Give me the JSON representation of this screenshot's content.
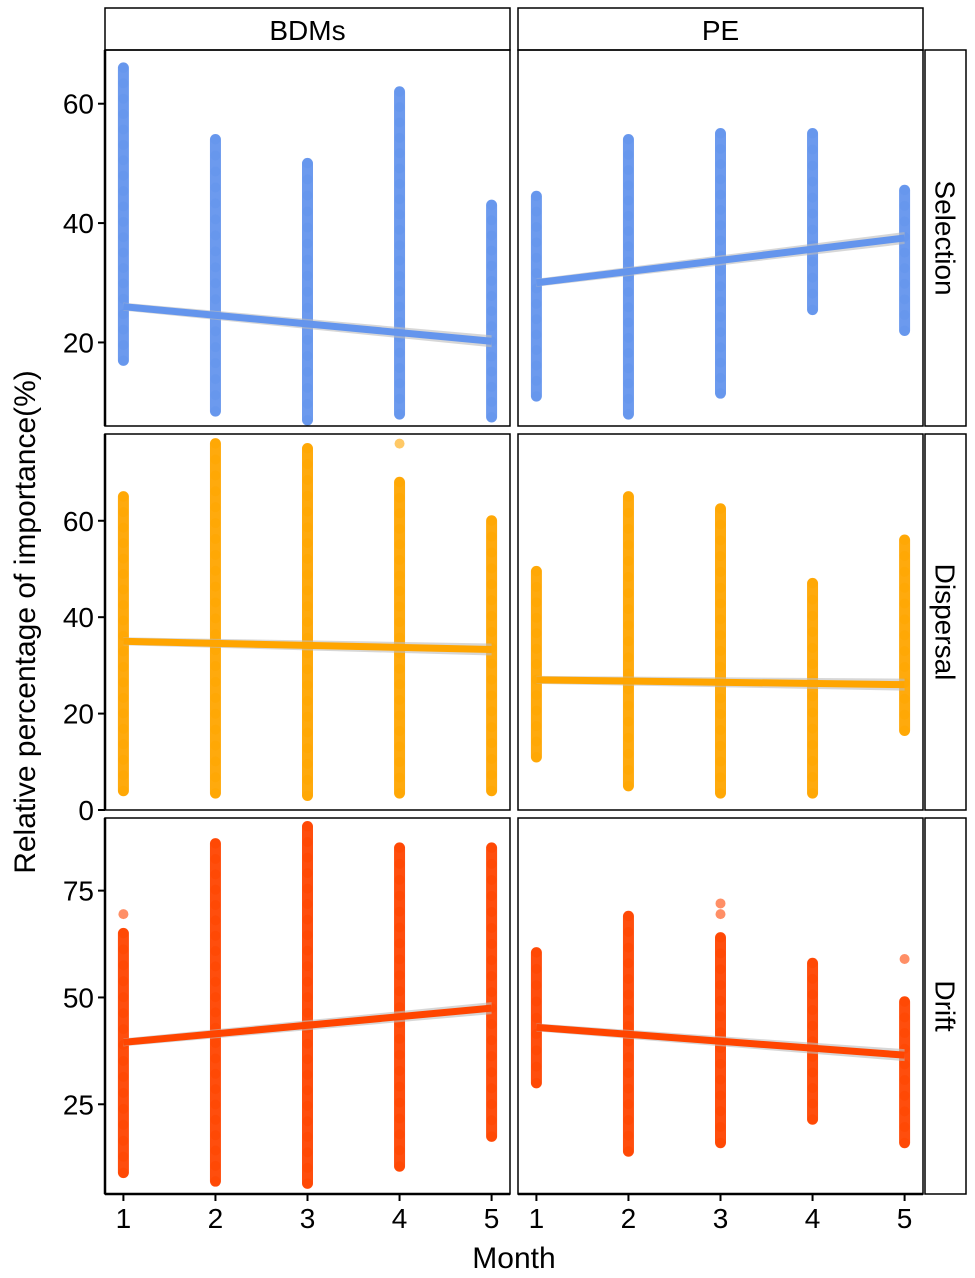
{
  "chart_data": {
    "type": "scatter",
    "facet_columns": [
      "BDMs",
      "PE"
    ],
    "facet_rows": [
      "Selection",
      "Dispersal",
      "Drift"
    ],
    "xlabel": "Month",
    "ylabel": "Relative percentage of importance(%)",
    "x_ticks": [
      "1",
      "2",
      "3",
      "4",
      "5"
    ],
    "x_range": [
      0.8,
      5.2
    ],
    "colors": {
      "Selection": "#6495ED",
      "Dispersal": "#FFA500",
      "Drift": "#FF4500"
    },
    "rows": [
      {
        "name": "Selection",
        "ylim": [
          6,
          69
        ],
        "y_ticks": [
          20,
          40,
          60
        ],
        "panels": [
          {
            "facet": "BDMs",
            "ranges": [
              [
                17,
                66
              ],
              [
                8.5,
                54
              ],
              [
                7,
                50
              ],
              [
                8,
                62
              ],
              [
                7.5,
                43
              ]
            ],
            "outliers": [
              [],
              [],
              [],
              [],
              []
            ],
            "fit": [
              26,
              20.2
            ]
          },
          {
            "facet": "PE",
            "ranges": [
              [
                11,
                44.5
              ],
              [
                8,
                54
              ],
              [
                11.5,
                55
              ],
              [
                25.5,
                55
              ],
              [
                22,
                45.5
              ]
            ],
            "outliers": [
              [],
              [],
              [],
              [],
              []
            ],
            "fit": [
              30,
              37.5
            ]
          }
        ]
      },
      {
        "name": "Dispersal",
        "ylim": [
          0,
          78
        ],
        "y_ticks": [
          0,
          20,
          40,
          60
        ],
        "panels": [
          {
            "facet": "BDMs",
            "ranges": [
              [
                4,
                65
              ],
              [
                3.5,
                76
              ],
              [
                3,
                75
              ],
              [
                3.5,
                68
              ],
              [
                4,
                60
              ]
            ],
            "outliers": [
              [],
              [],
              [],
              [
                76
              ],
              []
            ],
            "fit": [
              35,
              33.3
            ]
          },
          {
            "facet": "PE",
            "ranges": [
              [
                11,
                49.5
              ],
              [
                5,
                65
              ],
              [
                3.5,
                62.5
              ],
              [
                3.5,
                47
              ],
              [
                16.5,
                56
              ]
            ],
            "outliers": [
              [],
              [],
              [],
              [],
              []
            ],
            "fit": [
              27,
              26
            ]
          }
        ]
      },
      {
        "name": "Drift",
        "ylim": [
          4,
          92
        ],
        "y_ticks": [
          25,
          50,
          75
        ],
        "panels": [
          {
            "facet": "BDMs",
            "ranges": [
              [
                9,
                65
              ],
              [
                7,
                86
              ],
              [
                6.5,
                90
              ],
              [
                10.5,
                85
              ],
              [
                17.5,
                85
              ]
            ],
            "outliers": [
              [
                69.5
              ],
              [],
              [],
              [],
              []
            ],
            "fit": [
              39.5,
              47.5
            ]
          },
          {
            "facet": "PE",
            "ranges": [
              [
                30,
                60.5
              ],
              [
                14,
                69
              ],
              [
                16,
                64
              ],
              [
                21.5,
                58
              ],
              [
                16,
                49
              ]
            ],
            "outliers": [
              [],
              [],
              [
                69.5,
                72
              ],
              [],
              [
                59
              ]
            ],
            "fit": [
              43,
              36.5
            ]
          }
        ]
      }
    ]
  }
}
